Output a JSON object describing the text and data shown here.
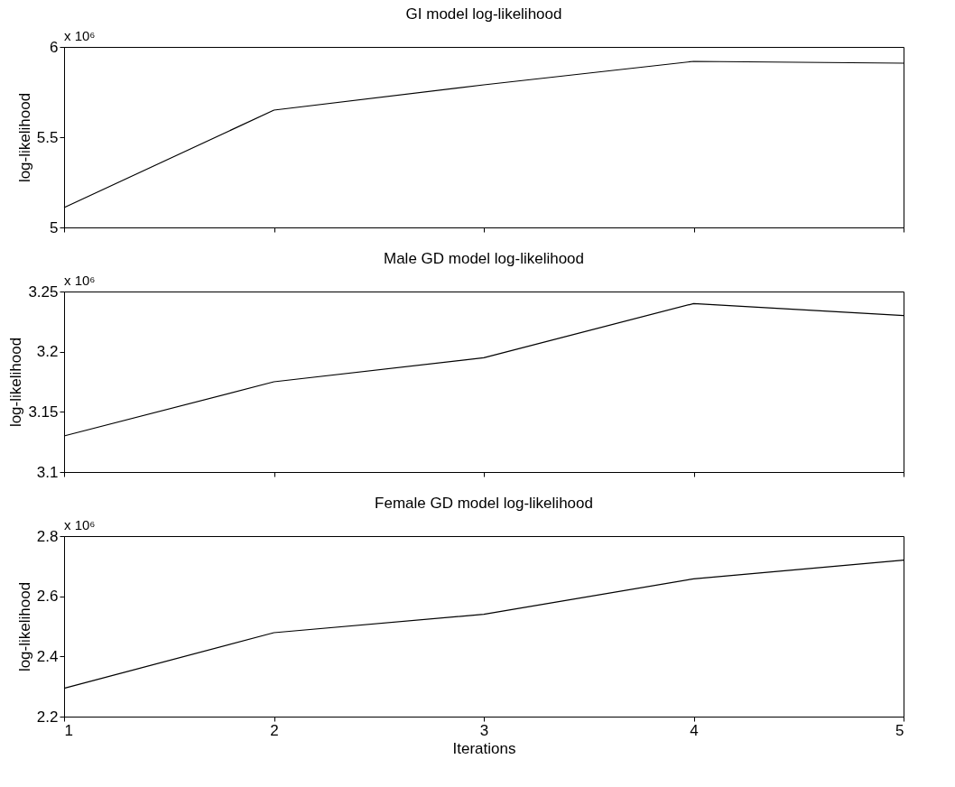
{
  "chart_data": [
    {
      "type": "line",
      "title": "GI model log-likelihood",
      "ylabel": "log-likelihood",
      "x": [
        1,
        2,
        3,
        4,
        5
      ],
      "xlim": [
        1,
        5
      ],
      "xticks": [
        1,
        2,
        3,
        4,
        5
      ],
      "ylim": [
        5,
        6
      ],
      "yticks": [
        5,
        5.5,
        6
      ],
      "grid": false,
      "tick_labels": "y",
      "annotations": [
        "x 10⁶"
      ],
      "series": [
        {
          "color": "#000000",
          "values": [
            5.11,
            5.65,
            5.79,
            5.92,
            5.91
          ]
        }
      ]
    },
    {
      "type": "line",
      "title": "Male GD model log-likelihood",
      "ylabel": "log-likelihood",
      "x": [
        1,
        2,
        3,
        4,
        5
      ],
      "xlim": [
        1,
        5
      ],
      "xticks": [
        1,
        2,
        3,
        4,
        5
      ],
      "ylim": [
        3.1,
        3.25
      ],
      "yticks": [
        3.1,
        3.15,
        3.2,
        3.25
      ],
      "grid": false,
      "tick_labels": "y",
      "annotations": [
        "x 10⁶"
      ],
      "series": [
        {
          "color": "#000000",
          "values": [
            3.13,
            3.175,
            3.195,
            3.24,
            3.23
          ]
        }
      ]
    },
    {
      "type": "line",
      "title": "Female GD model log-likelihood",
      "xlabel": "Iterations",
      "ylabel": "log-likelihood",
      "x": [
        1,
        2,
        3,
        4,
        5
      ],
      "xlim": [
        1,
        5
      ],
      "xticks": [
        1,
        2,
        3,
        4,
        5
      ],
      "ylim": [
        2.2,
        2.8
      ],
      "yticks": [
        2.2,
        2.4,
        2.6,
        2.8
      ],
      "grid": false,
      "annotations": [
        "x 10⁶"
      ],
      "series": [
        {
          "color": "#000000",
          "values": [
            2.294,
            2.479,
            2.54,
            2.658,
            2.72
          ]
        }
      ]
    }
  ]
}
